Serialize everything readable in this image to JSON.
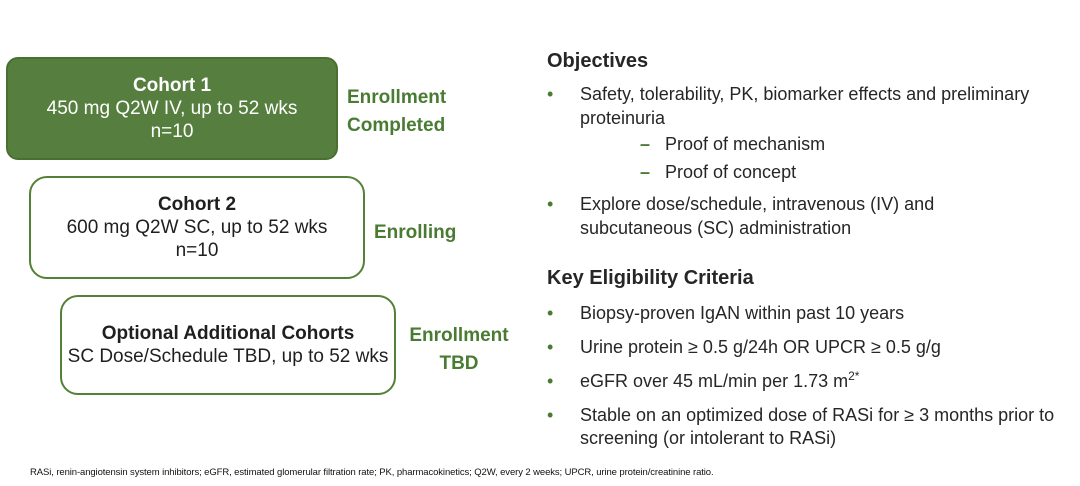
{
  "diagram": {
    "boxes": [
      {
        "title": "Cohort 1",
        "dose": "450 mg Q2W IV, up to 52 wks",
        "n": "n=10",
        "status": "Enrollment Completed"
      },
      {
        "title": "Cohort 2",
        "dose": "600 mg Q2W SC, up to 52 wks",
        "n": "n=10",
        "status": "Enrolling"
      },
      {
        "title": "Optional Additional Cohorts",
        "dose": "SC Dose/Schedule TBD, up to 52 wks",
        "n": "",
        "status": "Enrollment TBD"
      }
    ]
  },
  "objectives": {
    "heading": "Objectives",
    "bullet1": "Safety, tolerability, PK, biomarker effects and preliminary proteinuria",
    "sub_bullets": [
      "Proof of mechanism",
      "Proof of concept"
    ],
    "bullet2": "Explore dose/schedule, intravenous (IV) and subcutaneous (SC) administration"
  },
  "eligibility": {
    "heading": "Key Eligibility Criteria",
    "bullets": [
      "Biopsy-proven IgAN within past 10 years",
      "Urine protein ≥ 0.5 g/24h OR UPCR ≥ 0.5 g/g",
      {
        "text": "eGFR over 45 mL/min per 1.73 m",
        "sup": "2*"
      },
      "Stable on an optimized dose of RASi for ≥ 3  months prior to screening (or intolerant to RASi)"
    ]
  },
  "footnote": "RASi, renin-angiotensin system inhibitors; eGFR, estimated glomerular filtration rate; PK, pharmacokinetics; Q2W, every 2 weeks; UPCR, urine protein/creatinine ratio.",
  "colors": {
    "green_fill": "#567E3E",
    "green_border": "#538135",
    "green_text": "#4A7B33",
    "body_text": "#262626"
  }
}
